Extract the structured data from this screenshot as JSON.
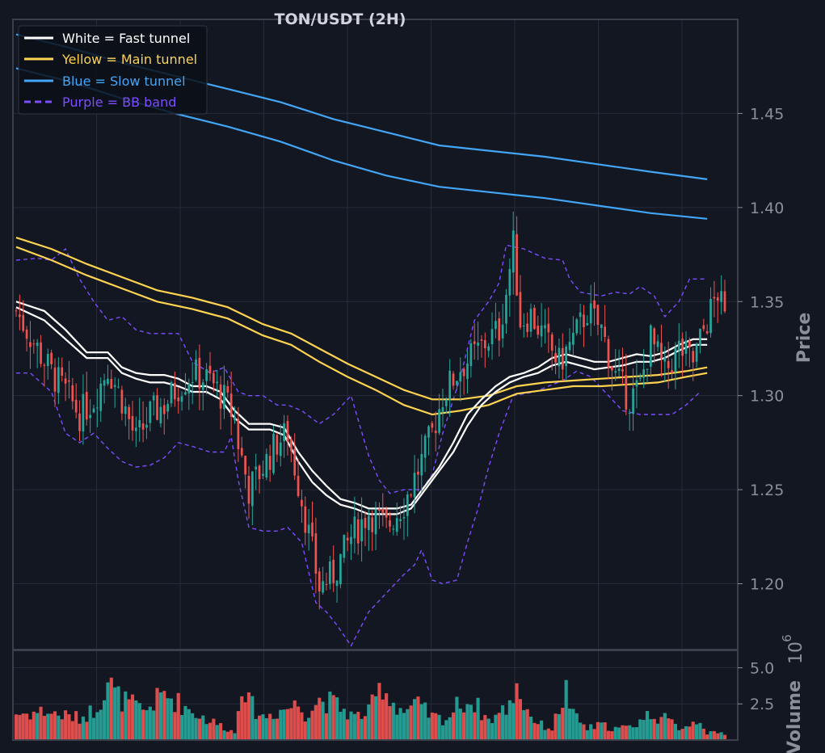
{
  "chart_data": {
    "type": "candlestick",
    "title": "TON/USDT (2H)",
    "price_axis": {
      "label": "Price",
      "ylim": [
        1.165,
        1.5
      ],
      "ticks": [
        1.2,
        1.25,
        1.3,
        1.35,
        1.4,
        1.45
      ],
      "tick_labels": [
        "1.20",
        "1.25",
        "1.30",
        "1.35",
        "1.40",
        "1.45"
      ],
      "grid": true
    },
    "volume_axis": {
      "label": "Volume",
      "multiplier_label": "10",
      "multiplier_exponent": "6",
      "ylim": [
        0,
        6.2
      ],
      "ticks": [
        2.5,
        5.0
      ],
      "tick_labels": [
        "2.5",
        "5.0"
      ],
      "grid": true
    },
    "legend": {
      "placement": "top-left",
      "entries": [
        {
          "label": "White = Fast tunnel",
          "color": "#ffffff",
          "style": "solid"
        },
        {
          "label": "Yellow = Main tunnel",
          "color": "#fdd34f",
          "style": "solid"
        },
        {
          "label": "Blue = Slow tunnel",
          "color": "#42a5f5",
          "style": "solid"
        },
        {
          "label": "Purple = BB band",
          "color": "#7c4dff",
          "style": "dashed"
        }
      ]
    },
    "colors": {
      "background": "#131722",
      "up": "#26a69a",
      "down": "#ef5350",
      "grid": "#262b38",
      "frame": "#3a3f4b"
    },
    "close_path": [
      [
        0,
        1.345
      ],
      [
        6,
        1.325
      ],
      [
        10,
        1.312
      ],
      [
        14,
        1.302
      ],
      [
        18,
        1.29
      ],
      [
        22,
        1.298
      ],
      [
        26,
        1.315
      ],
      [
        30,
        1.298
      ],
      [
        34,
        1.276
      ],
      [
        38,
        1.29
      ],
      [
        42,
        1.295
      ],
      [
        46,
        1.305
      ],
      [
        50,
        1.312
      ],
      [
        55,
        1.308
      ],
      [
        59,
        1.298
      ],
      [
        62,
        1.288
      ],
      [
        63,
        1.275
      ],
      [
        66,
        1.25
      ],
      [
        70,
        1.262
      ],
      [
        74,
        1.275
      ],
      [
        77,
        1.28
      ],
      [
        81,
        1.245
      ],
      [
        86,
        1.198
      ],
      [
        90,
        1.205
      ],
      [
        95,
        1.225
      ],
      [
        100,
        1.238
      ],
      [
        105,
        1.23
      ],
      [
        110,
        1.243
      ],
      [
        115,
        1.265
      ],
      [
        118,
        1.28
      ],
      [
        121,
        1.3
      ],
      [
        126,
        1.315
      ],
      [
        130,
        1.322
      ],
      [
        134,
        1.33
      ],
      [
        137,
        1.335
      ],
      [
        139,
        1.355
      ],
      [
        141,
        1.38
      ],
      [
        143,
        1.34
      ],
      [
        146,
        1.343
      ],
      [
        150,
        1.33
      ],
      [
        154,
        1.317
      ],
      [
        158,
        1.33
      ],
      [
        162,
        1.345
      ],
      [
        166,
        1.335
      ],
      [
        170,
        1.31
      ],
      [
        174,
        1.298
      ],
      [
        177,
        1.305
      ],
      [
        180,
        1.33
      ],
      [
        184,
        1.312
      ],
      [
        188,
        1.325
      ],
      [
        192,
        1.318
      ],
      [
        195,
        1.335
      ],
      [
        199,
        1.355
      ],
      [
        201,
        1.34
      ]
    ],
    "bb_upper": [
      [
        0,
        1.372
      ],
      [
        6,
        1.373
      ],
      [
        10,
        1.372
      ],
      [
        14,
        1.378
      ],
      [
        18,
        1.362
      ],
      [
        22,
        1.35
      ],
      [
        26,
        1.34
      ],
      [
        30,
        1.342
      ],
      [
        34,
        1.335
      ],
      [
        38,
        1.333
      ],
      [
        42,
        1.333
      ],
      [
        46,
        1.333
      ],
      [
        50,
        1.318
      ],
      [
        55,
        1.312
      ],
      [
        59,
        1.315
      ],
      [
        63,
        1.302
      ],
      [
        66,
        1.3
      ],
      [
        70,
        1.3
      ],
      [
        74,
        1.295
      ],
      [
        77,
        1.295
      ],
      [
        81,
        1.292
      ],
      [
        86,
        1.285
      ],
      [
        90,
        1.29
      ],
      [
        95,
        1.3
      ],
      [
        100,
        1.268
      ],
      [
        103,
        1.255
      ],
      [
        106,
        1.248
      ],
      [
        110,
        1.25
      ],
      [
        115,
        1.25
      ],
      [
        118,
        1.258
      ],
      [
        121,
        1.28
      ],
      [
        126,
        1.31
      ],
      [
        130,
        1.34
      ],
      [
        134,
        1.35
      ],
      [
        137,
        1.36
      ],
      [
        139,
        1.38
      ],
      [
        144,
        1.378
      ],
      [
        150,
        1.373
      ],
      [
        155,
        1.372
      ],
      [
        157,
        1.362
      ],
      [
        160,
        1.355
      ],
      [
        166,
        1.353
      ],
      [
        170,
        1.355
      ],
      [
        174,
        1.354
      ],
      [
        177,
        1.358
      ],
      [
        181,
        1.353
      ],
      [
        184,
        1.342
      ],
      [
        188,
        1.35
      ],
      [
        191,
        1.362
      ],
      [
        196,
        1.362
      ]
    ],
    "bb_lower": [
      [
        0,
        1.312
      ],
      [
        4,
        1.312
      ],
      [
        10,
        1.302
      ],
      [
        14,
        1.28
      ],
      [
        18,
        1.275
      ],
      [
        22,
        1.28
      ],
      [
        26,
        1.272
      ],
      [
        30,
        1.265
      ],
      [
        34,
        1.262
      ],
      [
        38,
        1.263
      ],
      [
        42,
        1.267
      ],
      [
        46,
        1.275
      ],
      [
        50,
        1.273
      ],
      [
        55,
        1.27
      ],
      [
        59,
        1.27
      ],
      [
        61,
        1.278
      ],
      [
        63,
        1.255
      ],
      [
        66,
        1.23
      ],
      [
        70,
        1.228
      ],
      [
        74,
        1.228
      ],
      [
        77,
        1.23
      ],
      [
        81,
        1.222
      ],
      [
        85,
        1.19
      ],
      [
        88,
        1.185
      ],
      [
        91,
        1.178
      ],
      [
        95,
        1.167
      ],
      [
        100,
        1.185
      ],
      [
        105,
        1.195
      ],
      [
        110,
        1.205
      ],
      [
        113,
        1.21
      ],
      [
        115,
        1.218
      ],
      [
        118,
        1.202
      ],
      [
        121,
        1.2
      ],
      [
        125,
        1.202
      ],
      [
        128,
        1.222
      ],
      [
        131,
        1.24
      ],
      [
        134,
        1.262
      ],
      [
        137,
        1.28
      ],
      [
        141,
        1.3
      ],
      [
        147,
        1.302
      ],
      [
        151,
        1.305
      ],
      [
        155,
        1.308
      ],
      [
        159,
        1.313
      ],
      [
        163,
        1.31
      ],
      [
        168,
        1.3
      ],
      [
        172,
        1.292
      ],
      [
        177,
        1.29
      ],
      [
        181,
        1.29
      ],
      [
        186,
        1.29
      ],
      [
        190,
        1.295
      ],
      [
        194,
        1.302
      ]
    ],
    "fast_tunnel": [
      [
        [
          0,
          1.35
        ],
        [
          8,
          1.345
        ],
        [
          14,
          1.335
        ],
        [
          20,
          1.323
        ],
        [
          26,
          1.323
        ],
        [
          30,
          1.315
        ],
        [
          34,
          1.312
        ],
        [
          38,
          1.311
        ],
        [
          42,
          1.311
        ],
        [
          46,
          1.309
        ],
        [
          50,
          1.305
        ],
        [
          54,
          1.305
        ],
        [
          58,
          1.302
        ],
        [
          62,
          1.292
        ],
        [
          66,
          1.285
        ],
        [
          72,
          1.285
        ],
        [
          76,
          1.283
        ],
        [
          80,
          1.27
        ],
        [
          84,
          1.26
        ],
        [
          88,
          1.252
        ],
        [
          92,
          1.245
        ],
        [
          96,
          1.243
        ],
        [
          100,
          1.24
        ],
        [
          104,
          1.24
        ],
        [
          108,
          1.24
        ],
        [
          112,
          1.242
        ],
        [
          116,
          1.252
        ],
        [
          120,
          1.262
        ],
        [
          124,
          1.275
        ],
        [
          128,
          1.29
        ],
        [
          132,
          1.298
        ],
        [
          136,
          1.305
        ],
        [
          140,
          1.31
        ],
        [
          144,
          1.312
        ],
        [
          148,
          1.315
        ],
        [
          152,
          1.32
        ],
        [
          156,
          1.322
        ],
        [
          160,
          1.32
        ],
        [
          164,
          1.318
        ],
        [
          168,
          1.318
        ],
        [
          172,
          1.32
        ],
        [
          176,
          1.322
        ],
        [
          180,
          1.321
        ],
        [
          184,
          1.323
        ],
        [
          188,
          1.327
        ],
        [
          192,
          1.33
        ],
        [
          196,
          1.33
        ]
      ],
      [
        [
          0,
          1.347
        ],
        [
          8,
          1.34
        ],
        [
          14,
          1.33
        ],
        [
          20,
          1.32
        ],
        [
          26,
          1.32
        ],
        [
          30,
          1.312
        ],
        [
          34,
          1.309
        ],
        [
          38,
          1.307
        ],
        [
          42,
          1.307
        ],
        [
          46,
          1.305
        ],
        [
          50,
          1.302
        ],
        [
          54,
          1.302
        ],
        [
          58,
          1.298
        ],
        [
          62,
          1.288
        ],
        [
          66,
          1.282
        ],
        [
          72,
          1.282
        ],
        [
          76,
          1.279
        ],
        [
          80,
          1.265
        ],
        [
          84,
          1.254
        ],
        [
          88,
          1.247
        ],
        [
          92,
          1.242
        ],
        [
          96,
          1.24
        ],
        [
          100,
          1.237
        ],
        [
          104,
          1.237
        ],
        [
          108,
          1.237
        ],
        [
          112,
          1.24
        ],
        [
          116,
          1.25
        ],
        [
          120,
          1.26
        ],
        [
          124,
          1.27
        ],
        [
          128,
          1.284
        ],
        [
          132,
          1.295
        ],
        [
          136,
          1.302
        ],
        [
          140,
          1.307
        ],
        [
          144,
          1.31
        ],
        [
          148,
          1.312
        ],
        [
          152,
          1.316
        ],
        [
          156,
          1.318
        ],
        [
          160,
          1.316
        ],
        [
          164,
          1.314
        ],
        [
          168,
          1.315
        ],
        [
          172,
          1.316
        ],
        [
          176,
          1.318
        ],
        [
          180,
          1.318
        ],
        [
          184,
          1.32
        ],
        [
          188,
          1.324
        ],
        [
          192,
          1.327
        ],
        [
          196,
          1.327
        ]
      ]
    ],
    "main_tunnel": [
      [
        [
          0,
          1.384
        ],
        [
          10,
          1.378
        ],
        [
          20,
          1.37
        ],
        [
          30,
          1.363
        ],
        [
          40,
          1.356
        ],
        [
          50,
          1.352
        ],
        [
          60,
          1.347
        ],
        [
          70,
          1.338
        ],
        [
          78,
          1.333
        ],
        [
          86,
          1.325
        ],
        [
          94,
          1.317
        ],
        [
          102,
          1.31
        ],
        [
          110,
          1.303
        ],
        [
          118,
          1.298
        ],
        [
          126,
          1.298
        ],
        [
          134,
          1.3
        ],
        [
          142,
          1.305
        ],
        [
          150,
          1.307
        ],
        [
          158,
          1.308
        ],
        [
          166,
          1.309
        ],
        [
          174,
          1.31
        ],
        [
          182,
          1.311
        ],
        [
          190,
          1.313
        ],
        [
          196,
          1.315
        ]
      ],
      [
        [
          0,
          1.379
        ],
        [
          10,
          1.372
        ],
        [
          20,
          1.364
        ],
        [
          30,
          1.357
        ],
        [
          40,
          1.35
        ],
        [
          50,
          1.346
        ],
        [
          60,
          1.341
        ],
        [
          70,
          1.332
        ],
        [
          78,
          1.327
        ],
        [
          86,
          1.318
        ],
        [
          94,
          1.31
        ],
        [
          102,
          1.303
        ],
        [
          110,
          1.295
        ],
        [
          118,
          1.29
        ],
        [
          126,
          1.292
        ],
        [
          134,
          1.295
        ],
        [
          142,
          1.301
        ],
        [
          150,
          1.303
        ],
        [
          158,
          1.305
        ],
        [
          166,
          1.305
        ],
        [
          174,
          1.306
        ],
        [
          182,
          1.307
        ],
        [
          190,
          1.31
        ],
        [
          196,
          1.312
        ]
      ]
    ],
    "slow_tunnel": [
      [
        [
          0,
          1.492
        ],
        [
          15,
          1.485
        ],
        [
          30,
          1.477
        ],
        [
          45,
          1.47
        ],
        [
          60,
          1.463
        ],
        [
          75,
          1.456
        ],
        [
          90,
          1.447
        ],
        [
          105,
          1.44
        ],
        [
          120,
          1.433
        ],
        [
          135,
          1.43
        ],
        [
          150,
          1.427
        ],
        [
          165,
          1.423
        ],
        [
          180,
          1.419
        ],
        [
          196,
          1.415
        ]
      ],
      [
        [
          0,
          1.474
        ],
        [
          15,
          1.467
        ],
        [
          30,
          1.458
        ],
        [
          45,
          1.45
        ],
        [
          60,
          1.443
        ],
        [
          75,
          1.435
        ],
        [
          90,
          1.425
        ],
        [
          105,
          1.417
        ],
        [
          120,
          1.411
        ],
        [
          135,
          1.408
        ],
        [
          150,
          1.405
        ],
        [
          165,
          1.401
        ],
        [
          180,
          1.397
        ],
        [
          196,
          1.394
        ]
      ]
    ],
    "volume_peaks": [
      [
        3,
        2.3
      ],
      [
        8,
        2.5
      ],
      [
        12,
        2.2
      ],
      [
        18,
        1.9
      ],
      [
        22,
        2.6
      ],
      [
        24,
        3.6
      ],
      [
        26,
        5.3
      ],
      [
        28,
        4.0
      ],
      [
        30,
        3.5
      ],
      [
        34,
        2.9
      ],
      [
        36,
        2.4
      ],
      [
        40,
        3.5
      ],
      [
        42,
        4.0
      ],
      [
        50,
        2.5
      ],
      [
        54,
        1.8
      ],
      [
        60,
        1.0
      ],
      [
        62,
        0.6
      ],
      [
        64,
        5.5
      ],
      [
        66,
        3.2
      ],
      [
        70,
        2.0
      ],
      [
        76,
        2.7
      ],
      [
        80,
        3.1
      ],
      [
        82,
        2.3
      ],
      [
        86,
        3.5
      ],
      [
        90,
        3.2
      ],
      [
        96,
        2.0
      ],
      [
        100,
        2.4
      ],
      [
        104,
        4.9
      ],
      [
        106,
        3.5
      ],
      [
        110,
        2.5
      ],
      [
        114,
        3.0
      ],
      [
        118,
        2.0
      ],
      [
        122,
        1.8
      ],
      [
        126,
        3.3
      ],
      [
        130,
        3.2
      ],
      [
        134,
        1.7
      ],
      [
        138,
        2.5
      ],
      [
        140,
        3.0
      ],
      [
        142,
        5.0
      ],
      [
        144,
        3.0
      ],
      [
        148,
        1.4
      ],
      [
        152,
        1.0
      ],
      [
        156,
        4.3
      ],
      [
        158,
        2.1
      ],
      [
        162,
        1.0
      ],
      [
        166,
        1.3
      ],
      [
        170,
        1.0
      ],
      [
        174,
        1.1
      ],
      [
        180,
        2.3
      ],
      [
        184,
        1.8
      ],
      [
        188,
        1.1
      ],
      [
        192,
        1.5
      ],
      [
        194,
        1.9
      ],
      [
        196,
        0.6
      ]
    ],
    "x_range": [
      0,
      201
    ]
  }
}
